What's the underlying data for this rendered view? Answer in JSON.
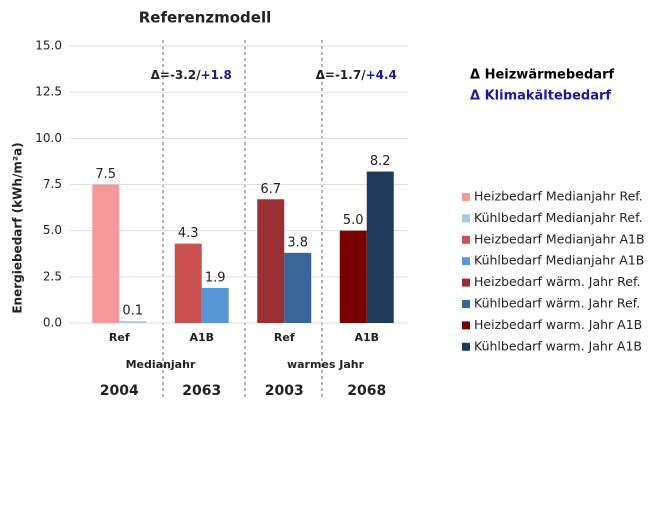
{
  "chart_data": {
    "type": "bar",
    "title": "Referenzmodell",
    "y_label": "Energiebedarf (kWh/m²a)",
    "categories": [
      "Ref",
      "A1B",
      "Ref",
      "A1B"
    ],
    "groups": [
      "Medianjahr",
      "warmes Jahr"
    ],
    "years": [
      "2004",
      "2063",
      "2003",
      "2068"
    ],
    "ylim": [
      0,
      15
    ],
    "yticks": [
      {
        "value": 0,
        "label": "0.0"
      },
      2.5,
      {
        "value": 5,
        "label": "5.0"
      },
      7.5,
      {
        "value": 10,
        "label": "10.0"
      },
      12.5,
      {
        "value": 15,
        "label": "15.0"
      }
    ],
    "grid": true,
    "annotations": [
      {
        "heat": "Δ=-3.2/",
        "cool": "+1.8"
      },
      {
        "heat": "Δ=-1.7/",
        "cool": "+4.4"
      }
    ],
    "delta_legend": [
      {
        "text": "Δ Heizwärmebedarf",
        "color": "#000000"
      },
      {
        "text": "Δ Klimakältebedarf",
        "color": "#1a1aa0"
      }
    ],
    "series": [
      {
        "name": "Heizbedarf Medianjahr Ref.",
        "color": "#f4999b",
        "values": [
          7.5,
          null,
          null,
          null
        ],
        "value_labels": [
          "7.5",
          null,
          null,
          null
        ]
      },
      {
        "name": "Kühlbedarf Medianjahr Ref.",
        "color": "#a6c6ea",
        "values": [
          0.1,
          null,
          null,
          null
        ],
        "value_labels": [
          "0.1",
          null,
          null,
          null
        ]
      },
      {
        "name": "Heizbedarf Medianjahr A1B",
        "color": "#c9504f",
        "values": [
          null,
          4.3,
          null,
          null
        ],
        "value_labels": [
          null,
          "4.3",
          null,
          null
        ]
      },
      {
        "name": "Kühlbedarf Medianjahr A1B",
        "color": "#5a95d8",
        "values": [
          null,
          1.9,
          null,
          null
        ],
        "value_labels": [
          null,
          "1.9",
          null,
          null
        ]
      },
      {
        "name": "Heizbedarf wärm. Jahr Ref.",
        "color": "#9b3034",
        "values": [
          null,
          null,
          6.7,
          null
        ],
        "value_labels": [
          null,
          null,
          "6.7",
          null
        ]
      },
      {
        "name": "Kühlbedarf wärm. Jahr Ref.",
        "color": "#3a6599",
        "values": [
          null,
          null,
          3.8,
          null
        ],
        "value_labels": [
          null,
          null,
          "3.8",
          null
        ]
      },
      {
        "name": "Heizbedarf warm. Jahr A1B",
        "color": "#7b0000",
        "values": [
          null,
          null,
          null,
          5.0
        ],
        "value_labels": [
          null,
          null,
          null,
          "5.0"
        ]
      },
      {
        "name": "Kühlbedarf warm. Jahr A1B",
        "color": "#203a5c",
        "values": [
          null,
          null,
          null,
          8.2
        ],
        "value_labels": [
          null,
          null,
          null,
          "8.2"
        ]
      }
    ]
  }
}
